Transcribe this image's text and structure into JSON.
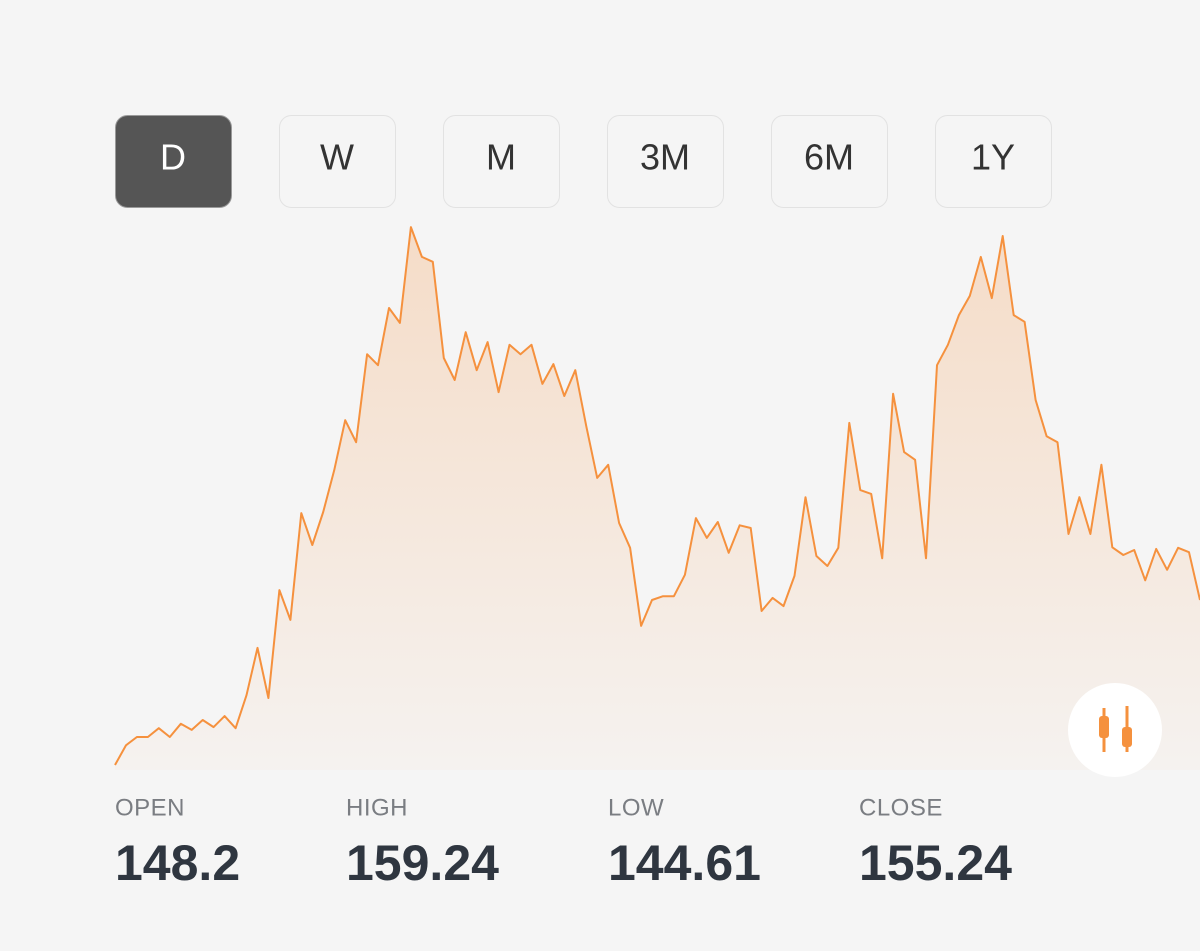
{
  "timeframes": [
    "D",
    "W",
    "M",
    "3M",
    "6M",
    "1Y"
  ],
  "active_timeframe": 0,
  "chart_data": {
    "type": "area",
    "color": "#f5913e",
    "ylim": [
      0,
      100
    ],
    "values": [
      0.9,
      4.5,
      6.0,
      6.0,
      7.6,
      6.0,
      8.4,
      7.3,
      9.1,
      7.8,
      9.8,
      7.6,
      13.6,
      22.2,
      13.1,
      32.7,
      27.3,
      46.7,
      40.9,
      46.9,
      54.5,
      63.6,
      59.6,
      75.6,
      73.6,
      84.0,
      81.3,
      98.7,
      93.3,
      92.4,
      74.9,
      70.9,
      79.6,
      72.7,
      77.8,
      68.7,
      77.3,
      75.6,
      77.3,
      70.2,
      73.8,
      68.0,
      72.7,
      62.5,
      53.1,
      55.5,
      44.9,
      40.4,
      26.2,
      30.9,
      31.6,
      31.6,
      35.5,
      45.8,
      42.2,
      45.1,
      39.5,
      44.5,
      44.0,
      28.9,
      31.3,
      29.8,
      35.3,
      49.6,
      38.9,
      37.1,
      40.4,
      63.1,
      50.9,
      50.2,
      38.5,
      68.4,
      57.8,
      56.4,
      38.5,
      73.6,
      77.3,
      82.7,
      86.2,
      93.3,
      85.8,
      97.1,
      82.7,
      81.5,
      67.3,
      60.7,
      59.6,
      42.9,
      49.6,
      42.9,
      55.5,
      40.5,
      39.1,
      40.0,
      34.5,
      40.2,
      36.4,
      40.4,
      39.6,
      30.9
    ]
  },
  "stats": [
    {
      "label": "OPEN",
      "value": 148.2
    },
    {
      "label": "HIGH",
      "value": 159.24
    },
    {
      "label": "LOW",
      "value": 144.61
    },
    {
      "label": "CLOSE",
      "value": 155.24
    }
  ]
}
